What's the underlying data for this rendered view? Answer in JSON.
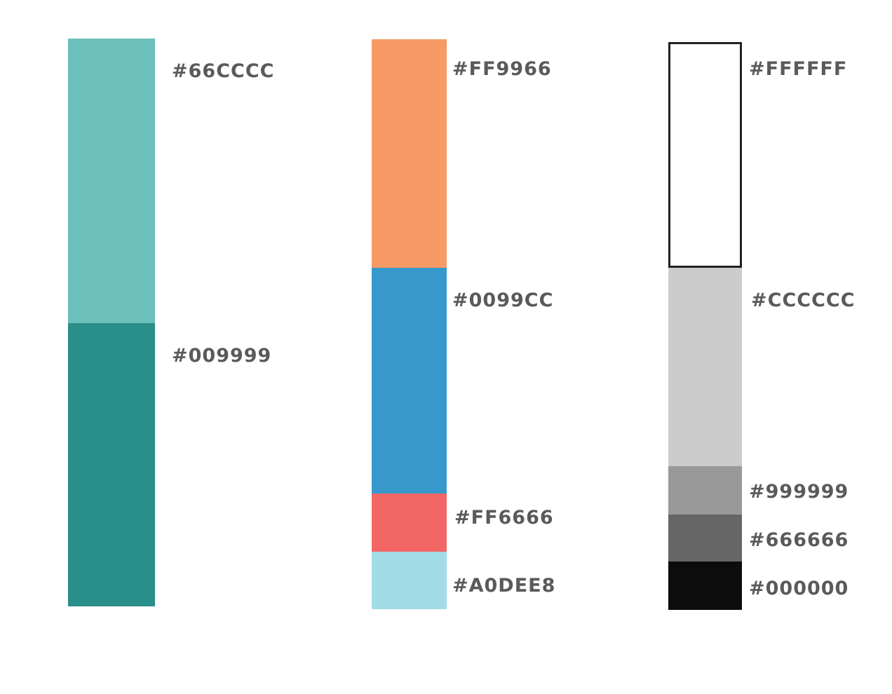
{
  "palettes": [
    {
      "swatches": [
        {
          "label": "#66CCCC",
          "color": "#6cc0bb"
        },
        {
          "label": "#009999",
          "color": "#2a8e8a"
        }
      ]
    },
    {
      "swatches": [
        {
          "label": "#FF9966",
          "color": "#f79a66"
        },
        {
          "label": "#0099CC",
          "color": "#3799cb"
        },
        {
          "label": "#FF6666",
          "color": "#f26666"
        },
        {
          "label": "#A0DEE8",
          "color": "#a2dde7"
        }
      ]
    },
    {
      "swatches": [
        {
          "label": "#FFFFFF",
          "color": "#ffffff"
        },
        {
          "label": "#CCCCCC",
          "color": "#cccccc"
        },
        {
          "label": "#999999",
          "color": "#999999"
        },
        {
          "label": "#666666",
          "color": "#666666"
        },
        {
          "label": "#000000",
          "color": "#0c0c0c"
        }
      ]
    }
  ]
}
